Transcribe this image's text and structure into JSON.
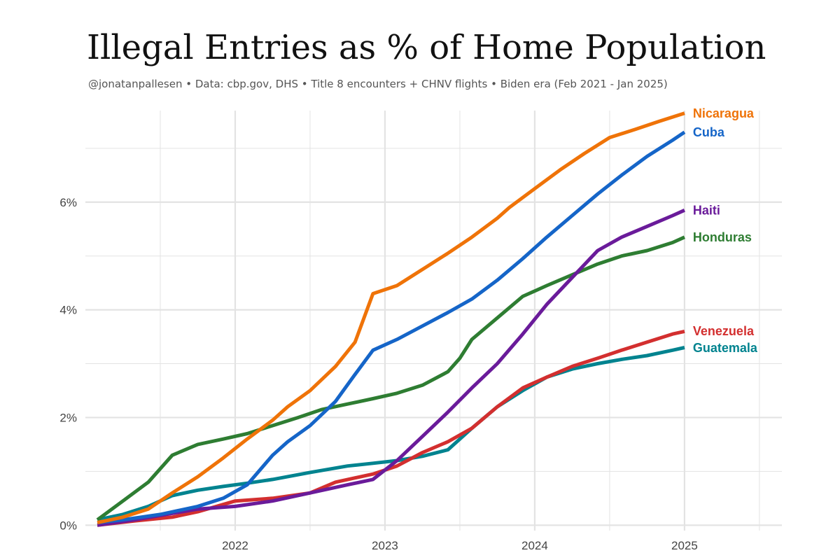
{
  "header": {
    "title": "Illegal Entries as % of Home Population",
    "subtitle": "@jonatanpallesen  •  Data: cbp.gov, DHS  •  Title 8 encounters + CHNV flights  •  Biden era (Feb 2021 - Jan 2025)"
  },
  "colors": {
    "gridline": "#e3e3e3",
    "axis_text": "#444444"
  },
  "chart_data": {
    "type": "line",
    "title": "Illegal Entries as % of Home Population",
    "xlabel": "",
    "ylabel": "",
    "xlim": [
      2021.0,
      2025.65
    ],
    "ylim": [
      -0.1,
      7.7
    ],
    "x_ticks": [
      2022,
      2023,
      2024,
      2025
    ],
    "x_tick_labels": [
      "2022",
      "2023",
      "2024",
      "2025"
    ],
    "y_ticks": [
      0,
      2,
      4,
      6
    ],
    "y_tick_labels": [
      "0%",
      "2%",
      "4%",
      "6%"
    ],
    "grid": true,
    "legend": "direct labels at line ends (right)",
    "series": [
      {
        "name": "Nicaragua",
        "color": "#EF7308",
        "x": [
          2021.08,
          2021.25,
          2021.42,
          2021.58,
          2021.75,
          2021.92,
          2022.08,
          2022.25,
          2022.35,
          2022.5,
          2022.67,
          2022.8,
          2022.92,
          2023.08,
          2023.25,
          2023.42,
          2023.58,
          2023.75,
          2023.83,
          2024.0,
          2024.17,
          2024.33,
          2024.5,
          2024.67,
          2024.83,
          2025.0
        ],
        "values": [
          0.05,
          0.15,
          0.3,
          0.6,
          0.9,
          1.25,
          1.6,
          1.95,
          2.2,
          2.5,
          2.95,
          3.4,
          4.3,
          4.45,
          4.75,
          5.05,
          5.35,
          5.7,
          5.9,
          6.25,
          6.6,
          6.9,
          7.2,
          7.35,
          7.5,
          7.65
        ]
      },
      {
        "name": "Cuba",
        "color": "#1565C8",
        "x": [
          2021.08,
          2021.25,
          2021.5,
          2021.75,
          2021.92,
          2022.08,
          2022.25,
          2022.35,
          2022.5,
          2022.67,
          2022.8,
          2022.92,
          2023.08,
          2023.25,
          2023.42,
          2023.58,
          2023.75,
          2023.92,
          2024.08,
          2024.25,
          2024.42,
          2024.58,
          2024.75,
          2024.92,
          2025.0
        ],
        "values": [
          0.05,
          0.1,
          0.2,
          0.35,
          0.5,
          0.75,
          1.3,
          1.55,
          1.85,
          2.3,
          2.8,
          3.25,
          3.45,
          3.7,
          3.95,
          4.2,
          4.55,
          4.95,
          5.35,
          5.75,
          6.15,
          6.5,
          6.85,
          7.15,
          7.3
        ]
      },
      {
        "name": "Haiti",
        "color": "#6A1B9A",
        "x": [
          2021.08,
          2021.33,
          2021.58,
          2021.75,
          2022.0,
          2022.25,
          2022.5,
          2022.75,
          2022.92,
          2023.08,
          2023.25,
          2023.42,
          2023.58,
          2023.75,
          2023.92,
          2024.08,
          2024.25,
          2024.42,
          2024.58,
          2024.75,
          2024.92,
          2025.0
        ],
        "values": [
          0.0,
          0.1,
          0.22,
          0.3,
          0.35,
          0.45,
          0.6,
          0.75,
          0.85,
          1.2,
          1.65,
          2.1,
          2.55,
          3.0,
          3.55,
          4.1,
          4.6,
          5.1,
          5.35,
          5.55,
          5.75,
          5.85
        ]
      },
      {
        "name": "Honduras",
        "color": "#2E7D32",
        "x": [
          2021.08,
          2021.25,
          2021.42,
          2021.58,
          2021.75,
          2021.92,
          2022.08,
          2022.25,
          2022.42,
          2022.58,
          2022.75,
          2022.92,
          2023.08,
          2023.25,
          2023.42,
          2023.5,
          2023.58,
          2023.75,
          2023.92,
          2024.08,
          2024.25,
          2024.42,
          2024.58,
          2024.75,
          2024.92,
          2025.0
        ],
        "values": [
          0.1,
          0.45,
          0.8,
          1.3,
          1.5,
          1.6,
          1.7,
          1.85,
          2.0,
          2.15,
          2.25,
          2.35,
          2.45,
          2.6,
          2.85,
          3.1,
          3.45,
          3.85,
          4.25,
          4.45,
          4.65,
          4.85,
          5.0,
          5.1,
          5.25,
          5.35
        ]
      },
      {
        "name": "Venezuela",
        "color": "#D32F2F",
        "x": [
          2021.08,
          2021.33,
          2021.58,
          2021.75,
          2022.0,
          2022.25,
          2022.5,
          2022.67,
          2022.92,
          2023.08,
          2023.25,
          2023.42,
          2023.58,
          2023.75,
          2023.92,
          2024.08,
          2024.25,
          2024.42,
          2024.58,
          2024.75,
          2024.92,
          2025.0
        ],
        "values": [
          0.0,
          0.08,
          0.15,
          0.25,
          0.45,
          0.5,
          0.6,
          0.8,
          0.95,
          1.1,
          1.35,
          1.55,
          1.8,
          2.2,
          2.55,
          2.75,
          2.95,
          3.1,
          3.25,
          3.4,
          3.55,
          3.6
        ]
      },
      {
        "name": "Guatemala",
        "color": "#00838F",
        "x": [
          2021.08,
          2021.25,
          2021.42,
          2021.58,
          2021.75,
          2021.92,
          2022.08,
          2022.25,
          2022.5,
          2022.75,
          2022.92,
          2023.08,
          2023.25,
          2023.42,
          2023.58,
          2023.75,
          2023.92,
          2024.08,
          2024.25,
          2024.42,
          2024.58,
          2024.75,
          2024.92,
          2025.0
        ],
        "values": [
          0.1,
          0.2,
          0.35,
          0.55,
          0.65,
          0.72,
          0.78,
          0.85,
          0.98,
          1.1,
          1.15,
          1.2,
          1.28,
          1.4,
          1.8,
          2.2,
          2.5,
          2.75,
          2.9,
          3.0,
          3.08,
          3.15,
          3.25,
          3.3
        ]
      }
    ]
  }
}
